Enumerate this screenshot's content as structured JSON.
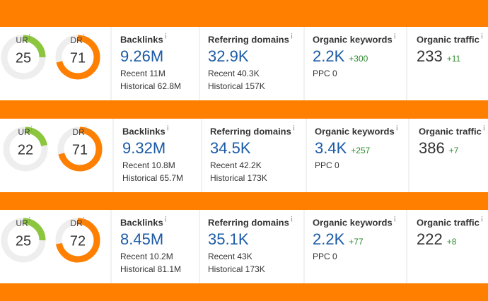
{
  "rows": [
    {
      "ur": {
        "label": "UR",
        "value": 25
      },
      "dr": {
        "label": "DR",
        "value": 71
      },
      "backlinks": {
        "label": "Backlinks",
        "value": "9.26M",
        "recent": "Recent 11M",
        "historical": "Historical 62.8M"
      },
      "referring_domains": {
        "label": "Referring domains",
        "value": "32.9K",
        "recent": "Recent 40.3K",
        "historical": "Historical 157K"
      },
      "organic_keywords": {
        "label": "Organic keywords",
        "value": "2.2K",
        "change": "+300",
        "ppc": "PPC 0"
      },
      "organic_traffic": {
        "label": "Organic traffic",
        "value": "233",
        "change": "+11"
      }
    },
    {
      "ur": {
        "label": "UR",
        "value": 22
      },
      "dr": {
        "label": "DR",
        "value": 71
      },
      "backlinks": {
        "label": "Backlinks",
        "value": "9.32M",
        "recent": "Recent 10.8M",
        "historical": "Historical 65.7M"
      },
      "referring_domains": {
        "label": "Referring domains",
        "value": "34.5K",
        "recent": "Recent 42.2K",
        "historical": "Historical 173K"
      },
      "organic_keywords": {
        "label": "Organic keywords",
        "value": "3.4K",
        "change": "+257",
        "ppc": "PPC 0"
      },
      "organic_traffic": {
        "label": "Organic traffic",
        "value": "386",
        "change": "+7"
      }
    },
    {
      "ur": {
        "label": "UR",
        "value": 25
      },
      "dr": {
        "label": "DR",
        "value": 72
      },
      "backlinks": {
        "label": "Backlinks",
        "value": "8.45M",
        "recent": "Recent 10.2M",
        "historical": "Historical 81.1M"
      },
      "referring_domains": {
        "label": "Referring domains",
        "value": "35.1K",
        "recent": "Recent 43K",
        "historical": "Historical 173K"
      },
      "organic_keywords": {
        "label": "Organic keywords",
        "value": "2.2K",
        "change": "+77",
        "ppc": "PPC 0"
      },
      "organic_traffic": {
        "label": "Organic traffic",
        "value": "222",
        "change": "+8"
      }
    }
  ]
}
